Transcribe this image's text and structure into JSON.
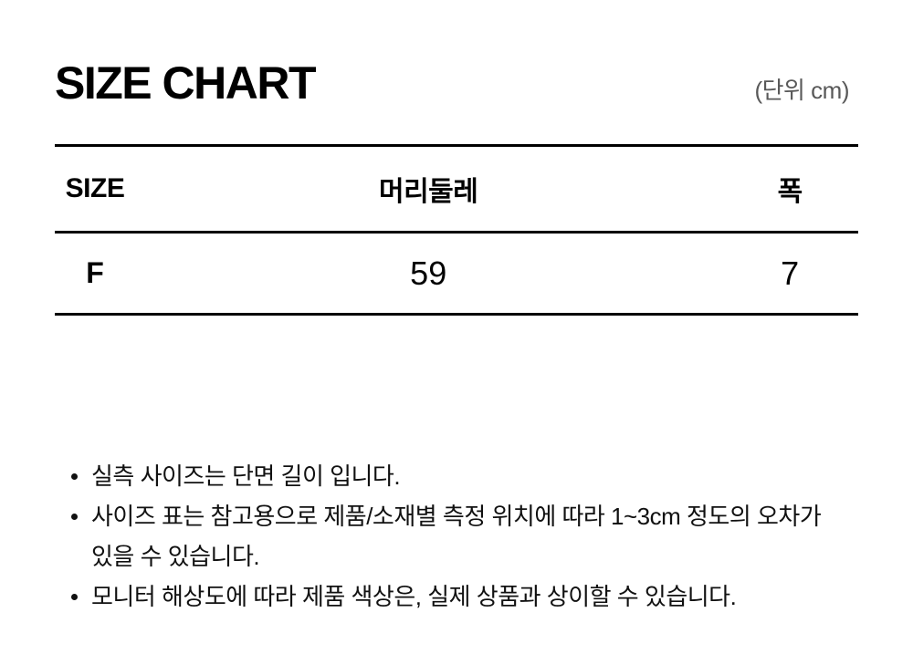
{
  "header": {
    "title": "SIZE CHART",
    "unit_label": "(단위 cm)"
  },
  "size_table": {
    "columns": [
      "SIZE",
      "머리둘레",
      "폭"
    ],
    "rows": [
      {
        "size": "F",
        "head_circumference": "59",
        "width": "7"
      }
    ]
  },
  "notes": [
    {
      "lines": [
        "실측 사이즈는 단면 길이 입니다."
      ]
    },
    {
      "lines": [
        "사이즈 표는 참고용으로 제품/소재별 측정 위치에 따라 1~3cm 정도의 오차가",
        "있을 수 있습니다."
      ]
    },
    {
      "lines": [
        "모니터 해상도에 따라 제품 색상은, 실제 상품과 상이할 수 있습니다."
      ]
    }
  ],
  "colors": {
    "background": "#ffffff",
    "text": "#000000",
    "muted_text": "#595959",
    "note_text": "#111111",
    "border": "#000000"
  }
}
